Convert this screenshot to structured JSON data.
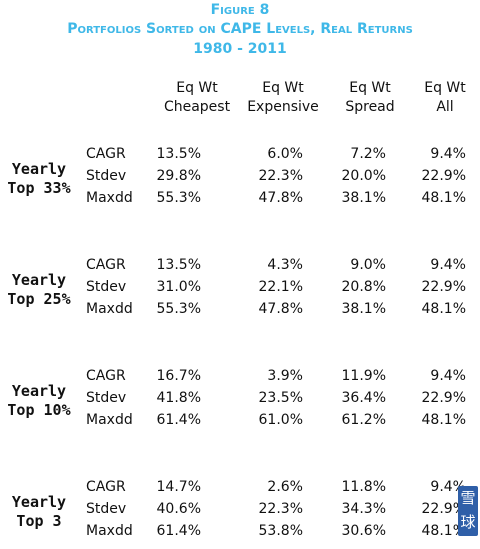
{
  "header": {
    "figure": "Figure 8",
    "title": "Portfolios Sorted on CAPE Levels, Real Returns",
    "years": "1980 - 2011"
  },
  "columns": [
    {
      "line1": "Eq Wt",
      "line2": "Cheapest"
    },
    {
      "line1": "Eq Wt",
      "line2": "Expensive"
    },
    {
      "line1": "Eq Wt",
      "line2": "Spread"
    },
    {
      "line1": "Eq Wt",
      "line2": "All"
    }
  ],
  "groups": [
    {
      "label1": "Yearly",
      "label2": "Top 33%",
      "rows": [
        {
          "metric": "CAGR",
          "values": [
            "13.5%",
            "6.0%",
            "7.2%",
            "9.4%"
          ]
        },
        {
          "metric": "Stdev",
          "values": [
            "29.8%",
            "22.3%",
            "20.0%",
            "22.9%"
          ]
        },
        {
          "metric": "Maxdd",
          "values": [
            "55.3%",
            "47.8%",
            "38.1%",
            "48.1%"
          ]
        }
      ]
    },
    {
      "label1": "Yearly",
      "label2": "Top 25%",
      "rows": [
        {
          "metric": "CAGR",
          "values": [
            "13.5%",
            "4.3%",
            "9.0%",
            "9.4%"
          ]
        },
        {
          "metric": "Stdev",
          "values": [
            "31.0%",
            "22.1%",
            "20.8%",
            "22.9%"
          ]
        },
        {
          "metric": "Maxdd",
          "values": [
            "55.3%",
            "47.8%",
            "38.1%",
            "48.1%"
          ]
        }
      ]
    },
    {
      "label1": "Yearly",
      "label2": "Top 10%",
      "rows": [
        {
          "metric": "CAGR",
          "values": [
            "16.7%",
            "3.9%",
            "11.9%",
            "9.4%"
          ]
        },
        {
          "metric": "Stdev",
          "values": [
            "41.8%",
            "23.5%",
            "36.4%",
            "22.9%"
          ]
        },
        {
          "metric": "Maxdd",
          "values": [
            "61.4%",
            "61.0%",
            "61.2%",
            "48.1%"
          ]
        }
      ]
    },
    {
      "label1": "Yearly",
      "label2": "Top 3",
      "rows": [
        {
          "metric": "CAGR",
          "values": [
            "14.7%",
            "2.6%",
            "11.8%",
            "9.4%"
          ]
        },
        {
          "metric": "Stdev",
          "values": [
            "40.6%",
            "22.3%",
            "34.3%",
            "22.9%"
          ]
        },
        {
          "metric": "Maxdd",
          "values": [
            "61.4%",
            "53.8%",
            "30.6%",
            "48.1%"
          ]
        }
      ]
    }
  ],
  "watermark": {
    "text": "雪球"
  },
  "colors": {
    "title": "#3fb8e8",
    "text": "#111111"
  }
}
